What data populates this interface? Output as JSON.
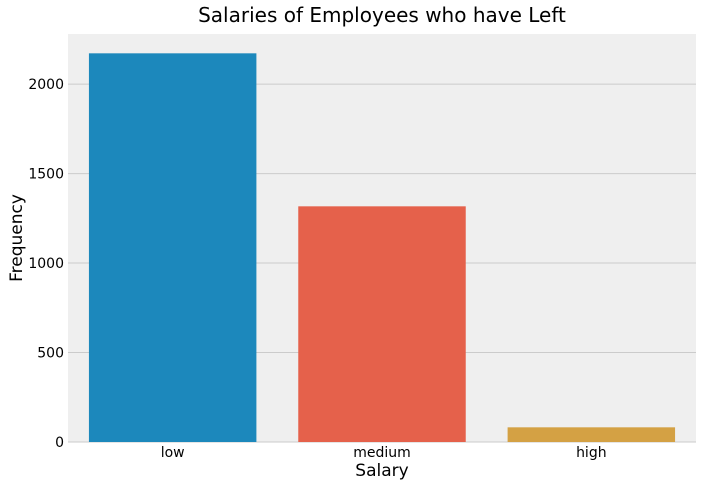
{
  "chart_data": {
    "type": "bar",
    "title": "Salaries of Employees who have Left",
    "xlabel": "Salary",
    "ylabel": "Frequency",
    "categories": [
      "low",
      "medium",
      "high"
    ],
    "values": [
      2172,
      1317,
      82
    ],
    "colors": [
      "#1c88bc",
      "#e5614b",
      "#d4a144"
    ],
    "ylim": [
      0,
      2280
    ],
    "yticks": [
      0,
      500,
      1000,
      1500,
      2000
    ],
    "grid": true,
    "grid_axis": "y",
    "background": "#efefef",
    "grid_color": "#cbcbcb"
  }
}
